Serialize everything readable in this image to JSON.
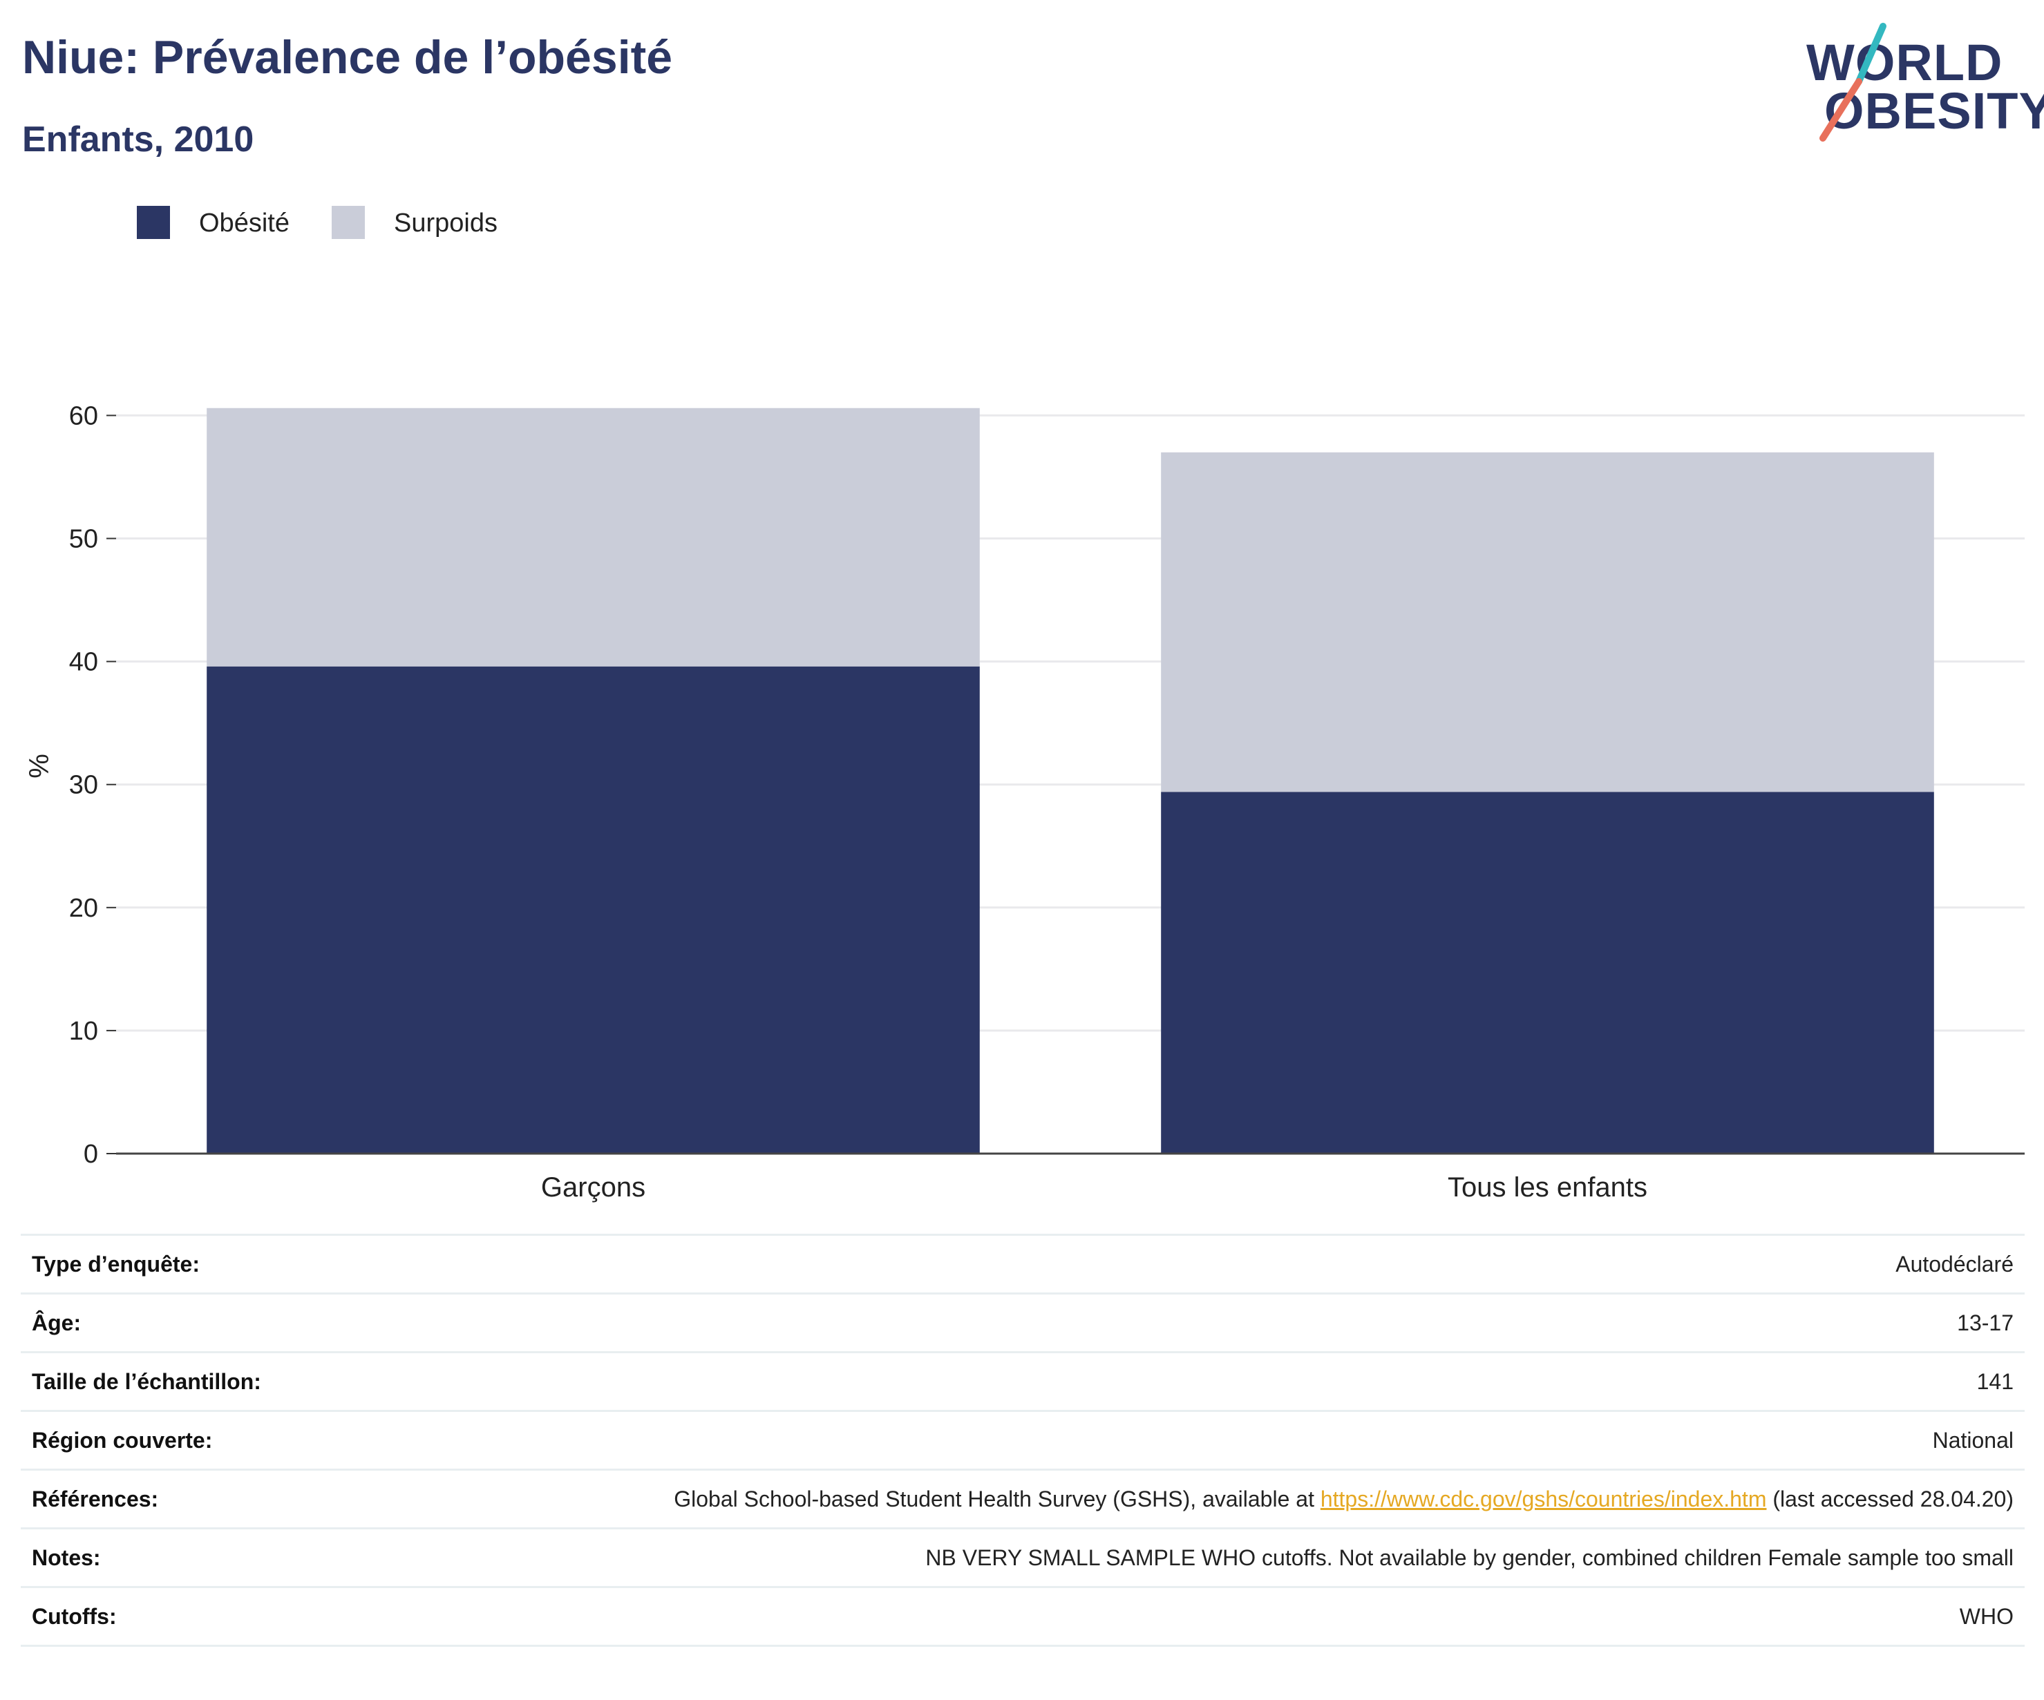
{
  "title": "Niue: Prévalence de l’obésité",
  "subtitle": "Enfants, 2010",
  "logo": {
    "line1": "WORLD",
    "line2": "OBESITY"
  },
  "colors": {
    "obesity": "#2b3664",
    "overweight": "#cacdd9",
    "brand_teal": "#33b8c0",
    "brand_coral": "#e8705b"
  },
  "legend": [
    {
      "label": "Obésité",
      "color": "#2b3664"
    },
    {
      "label": "Surpoids",
      "color": "#cacdd9"
    }
  ],
  "chart_data": {
    "type": "bar",
    "stacked": true,
    "categories": [
      "Garçons",
      "Tous les enfants"
    ],
    "series": [
      {
        "name": "Obésité",
        "values": [
          39.6,
          29.4
        ]
      },
      {
        "name": "Surpoids",
        "values": [
          21.0,
          27.6
        ]
      }
    ],
    "ylabel": "%",
    "ylim": [
      0,
      60
    ],
    "yticks": [
      0,
      10,
      20,
      30,
      40,
      50,
      60
    ],
    "grid": true,
    "legend_position": "top-left"
  },
  "info": {
    "survey_type": {
      "label": "Type d’enquête:",
      "value": "Autodéclaré"
    },
    "age": {
      "label": "Âge:",
      "value": "13-17"
    },
    "sample_size": {
      "label": "Taille de l’échantillon:",
      "value": "141"
    },
    "region": {
      "label": "Région couverte:",
      "value": "National"
    },
    "references": {
      "label": "Références:",
      "text_before": "Global School-based Student Health Survey (GSHS), available at ",
      "link": "https://www.cdc.gov/gshs/countries/index.htm",
      "text_after": " (last accessed 28.04.20)"
    },
    "notes": {
      "label": "Notes:",
      "value": "NB VERY SMALL SAMPLE WHO cutoffs. Not available by gender, combined children Female sample too small"
    },
    "cutoffs": {
      "label": "Cutoffs:",
      "value": "WHO"
    }
  }
}
